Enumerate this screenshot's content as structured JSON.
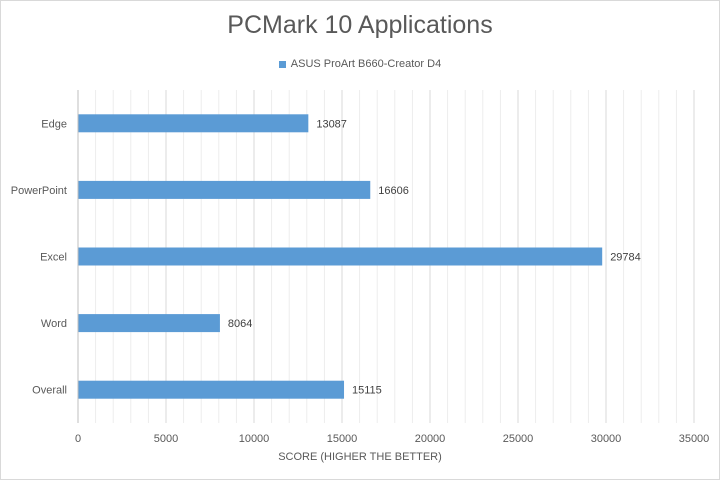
{
  "chart_data": {
    "type": "bar",
    "orientation": "horizontal",
    "title": "PCMark 10 Applications",
    "xlabel": "SCORE (HIGHER THE BETTER)",
    "ylabel": "",
    "categories": [
      "Edge",
      "PowerPoint",
      "Excel",
      "Word",
      "Overall"
    ],
    "series": [
      {
        "name": "ASUS ProArt B660-Creator D4",
        "values": [
          13087,
          16606,
          29784,
          8064,
          15115
        ],
        "color": "#5b9bd5"
      }
    ],
    "xlim": [
      0,
      35000
    ],
    "xticks": [
      "0",
      "5000",
      "10000",
      "15000",
      "20000",
      "25000",
      "30000",
      "35000"
    ],
    "grid": true,
    "legend_position": "top",
    "data_labels": true
  }
}
